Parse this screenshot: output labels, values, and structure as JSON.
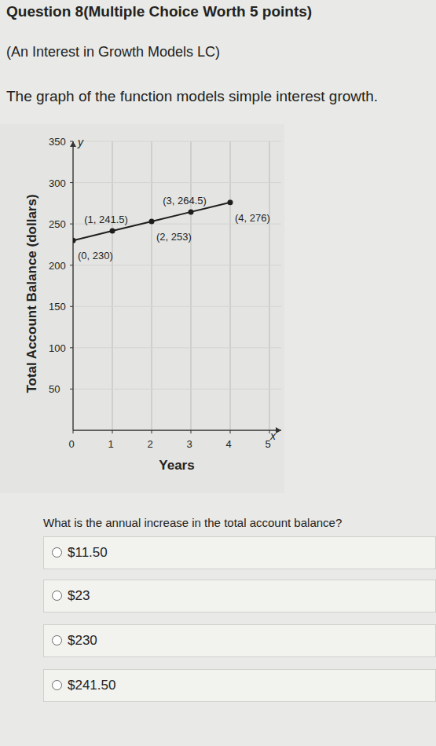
{
  "header": {
    "title": "Question 8(Multiple Choice Worth 5 points)",
    "subtitle": "(An Interest in Growth Models LC)"
  },
  "prompt": "The graph of the function models simple interest growth.",
  "chart_data": {
    "type": "line",
    "x_label": "Years",
    "y_label": "Total Account Balance (dollars)",
    "axis_letters": {
      "x": "x",
      "y": "y"
    },
    "x": [
      0,
      1,
      2,
      3,
      4
    ],
    "values": [
      230,
      241.5,
      253,
      264.5,
      276
    ],
    "value_labels": [
      "(0, 230)",
      "(1, 241.5)",
      "(2, 253)",
      "(3, 264.5)",
      "(4, 276)"
    ],
    "data_labels": true,
    "color": "#1e1e1e",
    "marker": "circle",
    "xlim": [
      0,
      5.3
    ],
    "ylim": [
      0,
      350
    ],
    "xticks": [
      0,
      1,
      2,
      3,
      4,
      5
    ],
    "yticks": [
      50,
      100,
      150,
      200,
      250,
      300,
      350
    ],
    "grid": true
  },
  "question": {
    "text": "What is the annual increase in the total account balance?",
    "options": [
      "$11.50",
      "$23",
      "$230",
      "$241.50"
    ]
  }
}
